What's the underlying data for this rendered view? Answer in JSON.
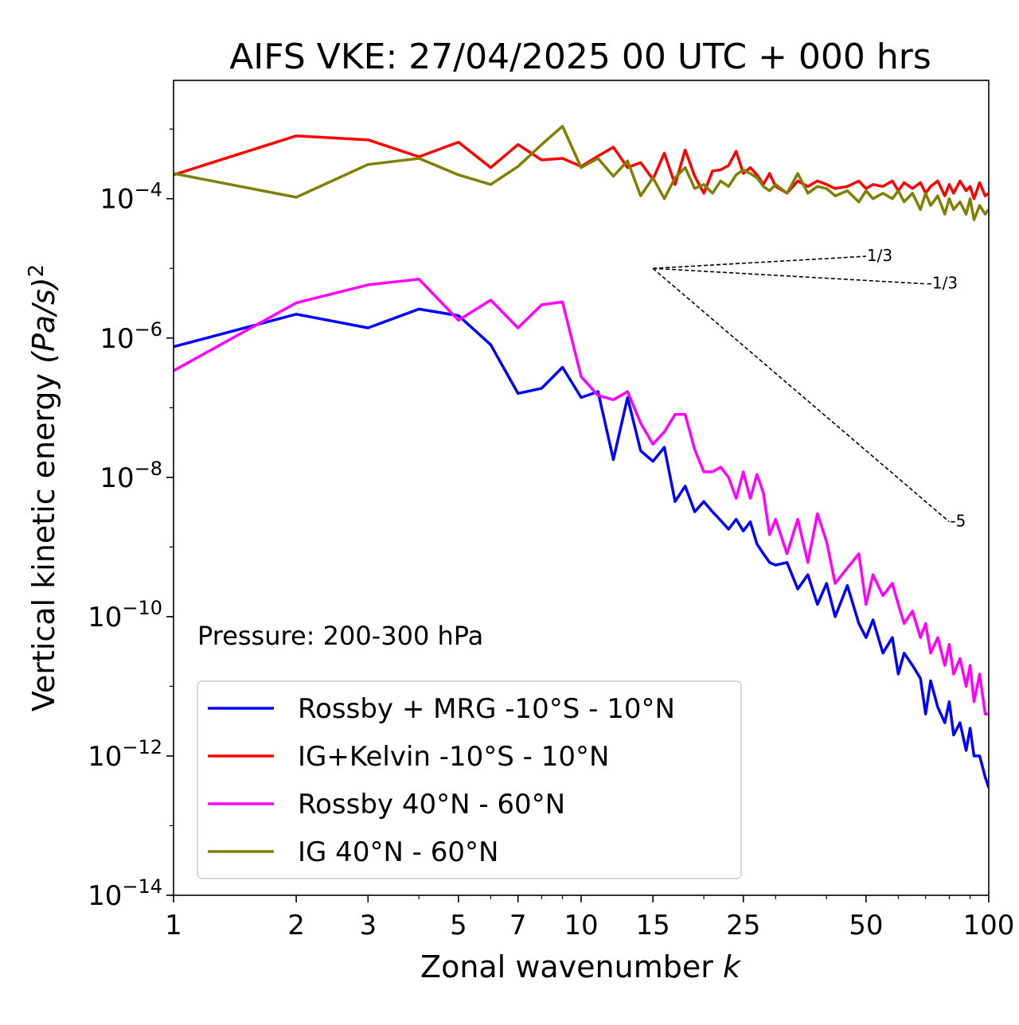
{
  "chart_data": {
    "type": "line",
    "title": "AIFS VKE: 27/04/2025 00 UTC + 000 hrs",
    "xlabel": "Zonal wavenumber",
    "xlabel_var": "k",
    "ylabel": "Vertical kinetic energy",
    "ylabel_unit": "(Pa/s)",
    "ylabel_exp": "2",
    "xscale": "log",
    "yscale": "log",
    "xlim": [
      1,
      100
    ],
    "ylim": [
      1e-14,
      0.005
    ],
    "xticks": [
      {
        "value": 1,
        "label": "1"
      },
      {
        "value": 2,
        "label": "2"
      },
      {
        "value": 3,
        "label": "3"
      },
      {
        "value": 5,
        "label": "5"
      },
      {
        "value": 7,
        "label": "7"
      },
      {
        "value": 10,
        "label": "10"
      },
      {
        "value": 15,
        "label": "15"
      },
      {
        "value": 25,
        "label": "25"
      },
      {
        "value": 50,
        "label": "50"
      },
      {
        "value": 100,
        "label": "100"
      }
    ],
    "yticks": [
      {
        "value": 0.0001,
        "base": "10",
        "exp": "−4"
      },
      {
        "value": 1e-06,
        "base": "10",
        "exp": "−6"
      },
      {
        "value": 1e-08,
        "base": "10",
        "exp": "−8"
      },
      {
        "value": 1e-10,
        "base": "10",
        "exp": "−10"
      },
      {
        "value": 1e-12,
        "base": "10",
        "exp": "−12"
      },
      {
        "value": 1e-14,
        "base": "10",
        "exp": "−14"
      }
    ],
    "annotation": "Pressure: 200-300 hPa",
    "legend_position": "lower-left",
    "grid": false,
    "reference_lines": [
      {
        "label": "1/3",
        "x": [
          15,
          50
        ],
        "y": [
          1e-05,
          1.49e-05
        ]
      },
      {
        "label": "-1/3",
        "x": [
          15,
          70
        ],
        "y": [
          1e-05,
          6e-06
        ]
      },
      {
        "label": "-5",
        "x": [
          15,
          80
        ],
        "y": [
          1e-05,
          2.3e-09
        ]
      }
    ],
    "series": [
      {
        "name": "Rossby + MRG -10°S - 10°N",
        "color": "#0000ff",
        "x": [
          1,
          2,
          3,
          4,
          5,
          6,
          7,
          8,
          9,
          10,
          11,
          12,
          13,
          14,
          15,
          16,
          17,
          18,
          19,
          20,
          21,
          22,
          23,
          24,
          25,
          26,
          27,
          28,
          29,
          30,
          32,
          34,
          36,
          38,
          40,
          42,
          45,
          48,
          50,
          52,
          55,
          58,
          60,
          62,
          65,
          68,
          70,
          72,
          75,
          78,
          80,
          82,
          85,
          88,
          90,
          92,
          95,
          98,
          100
        ],
        "y": [
          7.5e-07,
          2.2e-06,
          1.4e-06,
          2.6e-06,
          2.1e-06,
          8e-07,
          1.6e-07,
          1.9e-07,
          3.8e-07,
          1.4e-07,
          1.7e-07,
          1.8e-08,
          1.4e-07,
          2.4e-08,
          1.7e-08,
          2.7e-08,
          4.5e-09,
          7.5e-09,
          3.2e-09,
          4.5e-09,
          3.2e-09,
          2.4e-09,
          1.8e-09,
          2.5e-09,
          1.7e-09,
          2.3e-09,
          1.1e-09,
          8e-10,
          6e-10,
          5.5e-10,
          6e-10,
          2.5e-10,
          4e-10,
          1.5e-10,
          3e-10,
          1e-10,
          2.8e-10,
          8e-11,
          5e-11,
          9e-11,
          3e-11,
          5e-11,
          1.5e-11,
          3e-11,
          2e-11,
          1.3e-11,
          4e-12,
          1.2e-11,
          5e-12,
          3e-12,
          6e-12,
          2e-12,
          3e-12,
          1.2e-12,
          2.5e-12,
          1e-12,
          1e-12,
          5e-13,
          3.5e-13
        ]
      },
      {
        "name": "IG+Kelvin -10°S - 10°N",
        "color": "#ff0000",
        "x": [
          1,
          2,
          3,
          4,
          5,
          6,
          7,
          8,
          9,
          10,
          11,
          12,
          13,
          14,
          15,
          16,
          17,
          18,
          19,
          20,
          21,
          22,
          23,
          24,
          25,
          26,
          27,
          28,
          29,
          30,
          32,
          34,
          36,
          38,
          40,
          42,
          45,
          48,
          50,
          52,
          55,
          58,
          60,
          62,
          65,
          68,
          70,
          72,
          75,
          78,
          80,
          82,
          85,
          88,
          90,
          92,
          95,
          98,
          100
        ],
        "y": [
          0.00022,
          0.0008,
          0.0007,
          0.0004,
          0.00065,
          0.00028,
          0.0006,
          0.00036,
          0.00038,
          0.00029,
          0.00041,
          0.00055,
          0.00028,
          0.00033,
          0.00019,
          0.00045,
          0.00016,
          0.0005,
          0.00021,
          0.00012,
          0.00025,
          0.00026,
          0.0003,
          0.00048,
          0.00023,
          0.00028,
          0.00022,
          0.00016,
          0.00023,
          0.00015,
          0.00012,
          0.00018,
          0.00015,
          0.00018,
          0.00016,
          0.00014,
          0.00015,
          0.00018,
          0.00014,
          0.00016,
          0.00015,
          0.00018,
          0.00013,
          0.00017,
          0.00014,
          0.00017,
          0.00012,
          0.00015,
          0.00018,
          0.00011,
          0.00016,
          0.00012,
          0.00018,
          0.00013,
          0.00015,
          0.0001,
          0.00017,
          0.00011,
          0.00012
        ]
      },
      {
        "name": "Rossby 40°N - 60°N",
        "color": "#ff00ff",
        "x": [
          1,
          2,
          3,
          4,
          5,
          6,
          7,
          8,
          9,
          10,
          11,
          12,
          13,
          14,
          15,
          16,
          17,
          18,
          19,
          20,
          21,
          22,
          23,
          24,
          25,
          26,
          27,
          28,
          29,
          30,
          32,
          34,
          36,
          38,
          40,
          42,
          45,
          48,
          50,
          52,
          55,
          58,
          60,
          62,
          65,
          68,
          70,
          72,
          75,
          78,
          80,
          82,
          85,
          88,
          90,
          92,
          95,
          98,
          100
        ],
        "y": [
          3.4e-07,
          3.2e-06,
          5.8e-06,
          7e-06,
          1.8e-06,
          3.5e-06,
          1.4e-06,
          3e-06,
          3.3e-06,
          2.8e-07,
          1.5e-07,
          1.3e-07,
          1.7e-07,
          6e-08,
          3e-08,
          4.5e-08,
          8e-08,
          8e-08,
          2.5e-08,
          1.2e-08,
          1.2e-08,
          1.4e-08,
          1e-08,
          5e-09,
          1.2e-08,
          5e-09,
          1.1e-08,
          6e-09,
          1.5e-09,
          2.5e-09,
          8e-10,
          2.5e-09,
          6e-10,
          3e-09,
          1.2e-09,
          3e-10,
          5e-10,
          8e-10,
          1.5e-10,
          4e-10,
          2e-10,
          3e-10,
          1.5e-10,
          8e-11,
          1.2e-10,
          5e-11,
          8e-11,
          3e-11,
          5e-11,
          2e-11,
          4e-11,
          1.5e-11,
          2.5e-11,
          1e-11,
          2e-11,
          6e-12,
          1.5e-11,
          4e-12,
          4e-12
        ]
      },
      {
        "name": "IG 40°N - 60°N",
        "color": "#808000",
        "x": [
          1,
          2,
          3,
          4,
          5,
          6,
          7,
          8,
          9,
          10,
          11,
          12,
          13,
          14,
          15,
          16,
          17,
          18,
          19,
          20,
          21,
          22,
          23,
          24,
          25,
          26,
          27,
          28,
          29,
          30,
          32,
          34,
          36,
          38,
          40,
          42,
          45,
          48,
          50,
          52,
          55,
          58,
          60,
          62,
          65,
          68,
          70,
          72,
          75,
          78,
          80,
          82,
          85,
          88,
          90,
          92,
          95,
          98,
          100
        ],
        "y": [
          0.00023,
          0.000105,
          0.00031,
          0.00038,
          0.00022,
          0.00016,
          0.00029,
          0.0006,
          0.0011,
          0.00028,
          0.00038,
          0.00021,
          0.00035,
          0.00011,
          0.0002,
          0.0001,
          0.0002,
          0.00028,
          0.00014,
          0.00016,
          0.00012,
          0.00018,
          0.00015,
          0.00022,
          0.00026,
          0.00023,
          0.0002,
          0.00015,
          0.00013,
          0.00016,
          0.00012,
          0.00023,
          0.00012,
          0.00015,
          0.00014,
          0.00011,
          0.00013,
          9e-05,
          0.00013,
          0.0001,
          0.00012,
          0.0001,
          0.00013,
          9e-05,
          0.00012,
          7e-05,
          0.00012,
          8e-05,
          0.00011,
          6e-05,
          0.0001,
          7e-05,
          9e-05,
          6e-05,
          0.0001,
          5e-05,
          8e-05,
          6e-05,
          7e-05
        ]
      }
    ]
  }
}
